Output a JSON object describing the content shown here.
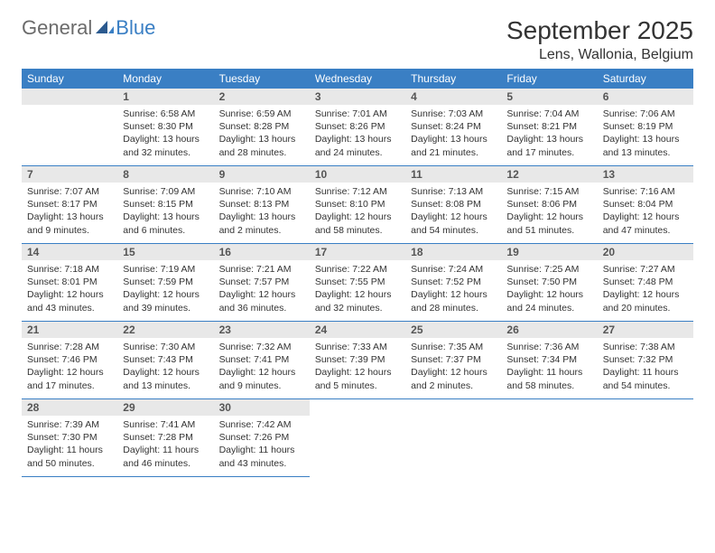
{
  "logo": {
    "word1": "General",
    "word2": "Blue"
  },
  "title": "September 2025",
  "location": "Lens, Wallonia, Belgium",
  "colors": {
    "header_bg": "#3a7fc4",
    "header_text": "#ffffff",
    "daynum_bg": "#e8e8e8",
    "daynum_text": "#555555",
    "body_text": "#333333",
    "border": "#3a7fc4",
    "logo_gray": "#6b6b6b",
    "logo_blue": "#3a7fc4"
  },
  "weekdays": [
    "Sunday",
    "Monday",
    "Tuesday",
    "Wednesday",
    "Thursday",
    "Friday",
    "Saturday"
  ],
  "first_weekday_index": 1,
  "days": [
    {
      "n": 1,
      "sunrise": "6:58 AM",
      "sunset": "8:30 PM",
      "daylight": "13 hours and 32 minutes."
    },
    {
      "n": 2,
      "sunrise": "6:59 AM",
      "sunset": "8:28 PM",
      "daylight": "13 hours and 28 minutes."
    },
    {
      "n": 3,
      "sunrise": "7:01 AM",
      "sunset": "8:26 PM",
      "daylight": "13 hours and 24 minutes."
    },
    {
      "n": 4,
      "sunrise": "7:03 AM",
      "sunset": "8:24 PM",
      "daylight": "13 hours and 21 minutes."
    },
    {
      "n": 5,
      "sunrise": "7:04 AM",
      "sunset": "8:21 PM",
      "daylight": "13 hours and 17 minutes."
    },
    {
      "n": 6,
      "sunrise": "7:06 AM",
      "sunset": "8:19 PM",
      "daylight": "13 hours and 13 minutes."
    },
    {
      "n": 7,
      "sunrise": "7:07 AM",
      "sunset": "8:17 PM",
      "daylight": "13 hours and 9 minutes."
    },
    {
      "n": 8,
      "sunrise": "7:09 AM",
      "sunset": "8:15 PM",
      "daylight": "13 hours and 6 minutes."
    },
    {
      "n": 9,
      "sunrise": "7:10 AM",
      "sunset": "8:13 PM",
      "daylight": "13 hours and 2 minutes."
    },
    {
      "n": 10,
      "sunrise": "7:12 AM",
      "sunset": "8:10 PM",
      "daylight": "12 hours and 58 minutes."
    },
    {
      "n": 11,
      "sunrise": "7:13 AM",
      "sunset": "8:08 PM",
      "daylight": "12 hours and 54 minutes."
    },
    {
      "n": 12,
      "sunrise": "7:15 AM",
      "sunset": "8:06 PM",
      "daylight": "12 hours and 51 minutes."
    },
    {
      "n": 13,
      "sunrise": "7:16 AM",
      "sunset": "8:04 PM",
      "daylight": "12 hours and 47 minutes."
    },
    {
      "n": 14,
      "sunrise": "7:18 AM",
      "sunset": "8:01 PM",
      "daylight": "12 hours and 43 minutes."
    },
    {
      "n": 15,
      "sunrise": "7:19 AM",
      "sunset": "7:59 PM",
      "daylight": "12 hours and 39 minutes."
    },
    {
      "n": 16,
      "sunrise": "7:21 AM",
      "sunset": "7:57 PM",
      "daylight": "12 hours and 36 minutes."
    },
    {
      "n": 17,
      "sunrise": "7:22 AM",
      "sunset": "7:55 PM",
      "daylight": "12 hours and 32 minutes."
    },
    {
      "n": 18,
      "sunrise": "7:24 AM",
      "sunset": "7:52 PM",
      "daylight": "12 hours and 28 minutes."
    },
    {
      "n": 19,
      "sunrise": "7:25 AM",
      "sunset": "7:50 PM",
      "daylight": "12 hours and 24 minutes."
    },
    {
      "n": 20,
      "sunrise": "7:27 AM",
      "sunset": "7:48 PM",
      "daylight": "12 hours and 20 minutes."
    },
    {
      "n": 21,
      "sunrise": "7:28 AM",
      "sunset": "7:46 PM",
      "daylight": "12 hours and 17 minutes."
    },
    {
      "n": 22,
      "sunrise": "7:30 AM",
      "sunset": "7:43 PM",
      "daylight": "12 hours and 13 minutes."
    },
    {
      "n": 23,
      "sunrise": "7:32 AM",
      "sunset": "7:41 PM",
      "daylight": "12 hours and 9 minutes."
    },
    {
      "n": 24,
      "sunrise": "7:33 AM",
      "sunset": "7:39 PM",
      "daylight": "12 hours and 5 minutes."
    },
    {
      "n": 25,
      "sunrise": "7:35 AM",
      "sunset": "7:37 PM",
      "daylight": "12 hours and 2 minutes."
    },
    {
      "n": 26,
      "sunrise": "7:36 AM",
      "sunset": "7:34 PM",
      "daylight": "11 hours and 58 minutes."
    },
    {
      "n": 27,
      "sunrise": "7:38 AM",
      "sunset": "7:32 PM",
      "daylight": "11 hours and 54 minutes."
    },
    {
      "n": 28,
      "sunrise": "7:39 AM",
      "sunset": "7:30 PM",
      "daylight": "11 hours and 50 minutes."
    },
    {
      "n": 29,
      "sunrise": "7:41 AM",
      "sunset": "7:28 PM",
      "daylight": "11 hours and 46 minutes."
    },
    {
      "n": 30,
      "sunrise": "7:42 AM",
      "sunset": "7:26 PM",
      "daylight": "11 hours and 43 minutes."
    }
  ],
  "labels": {
    "sunrise_prefix": "Sunrise: ",
    "sunset_prefix": "Sunset: ",
    "daylight_prefix": "Daylight: "
  }
}
